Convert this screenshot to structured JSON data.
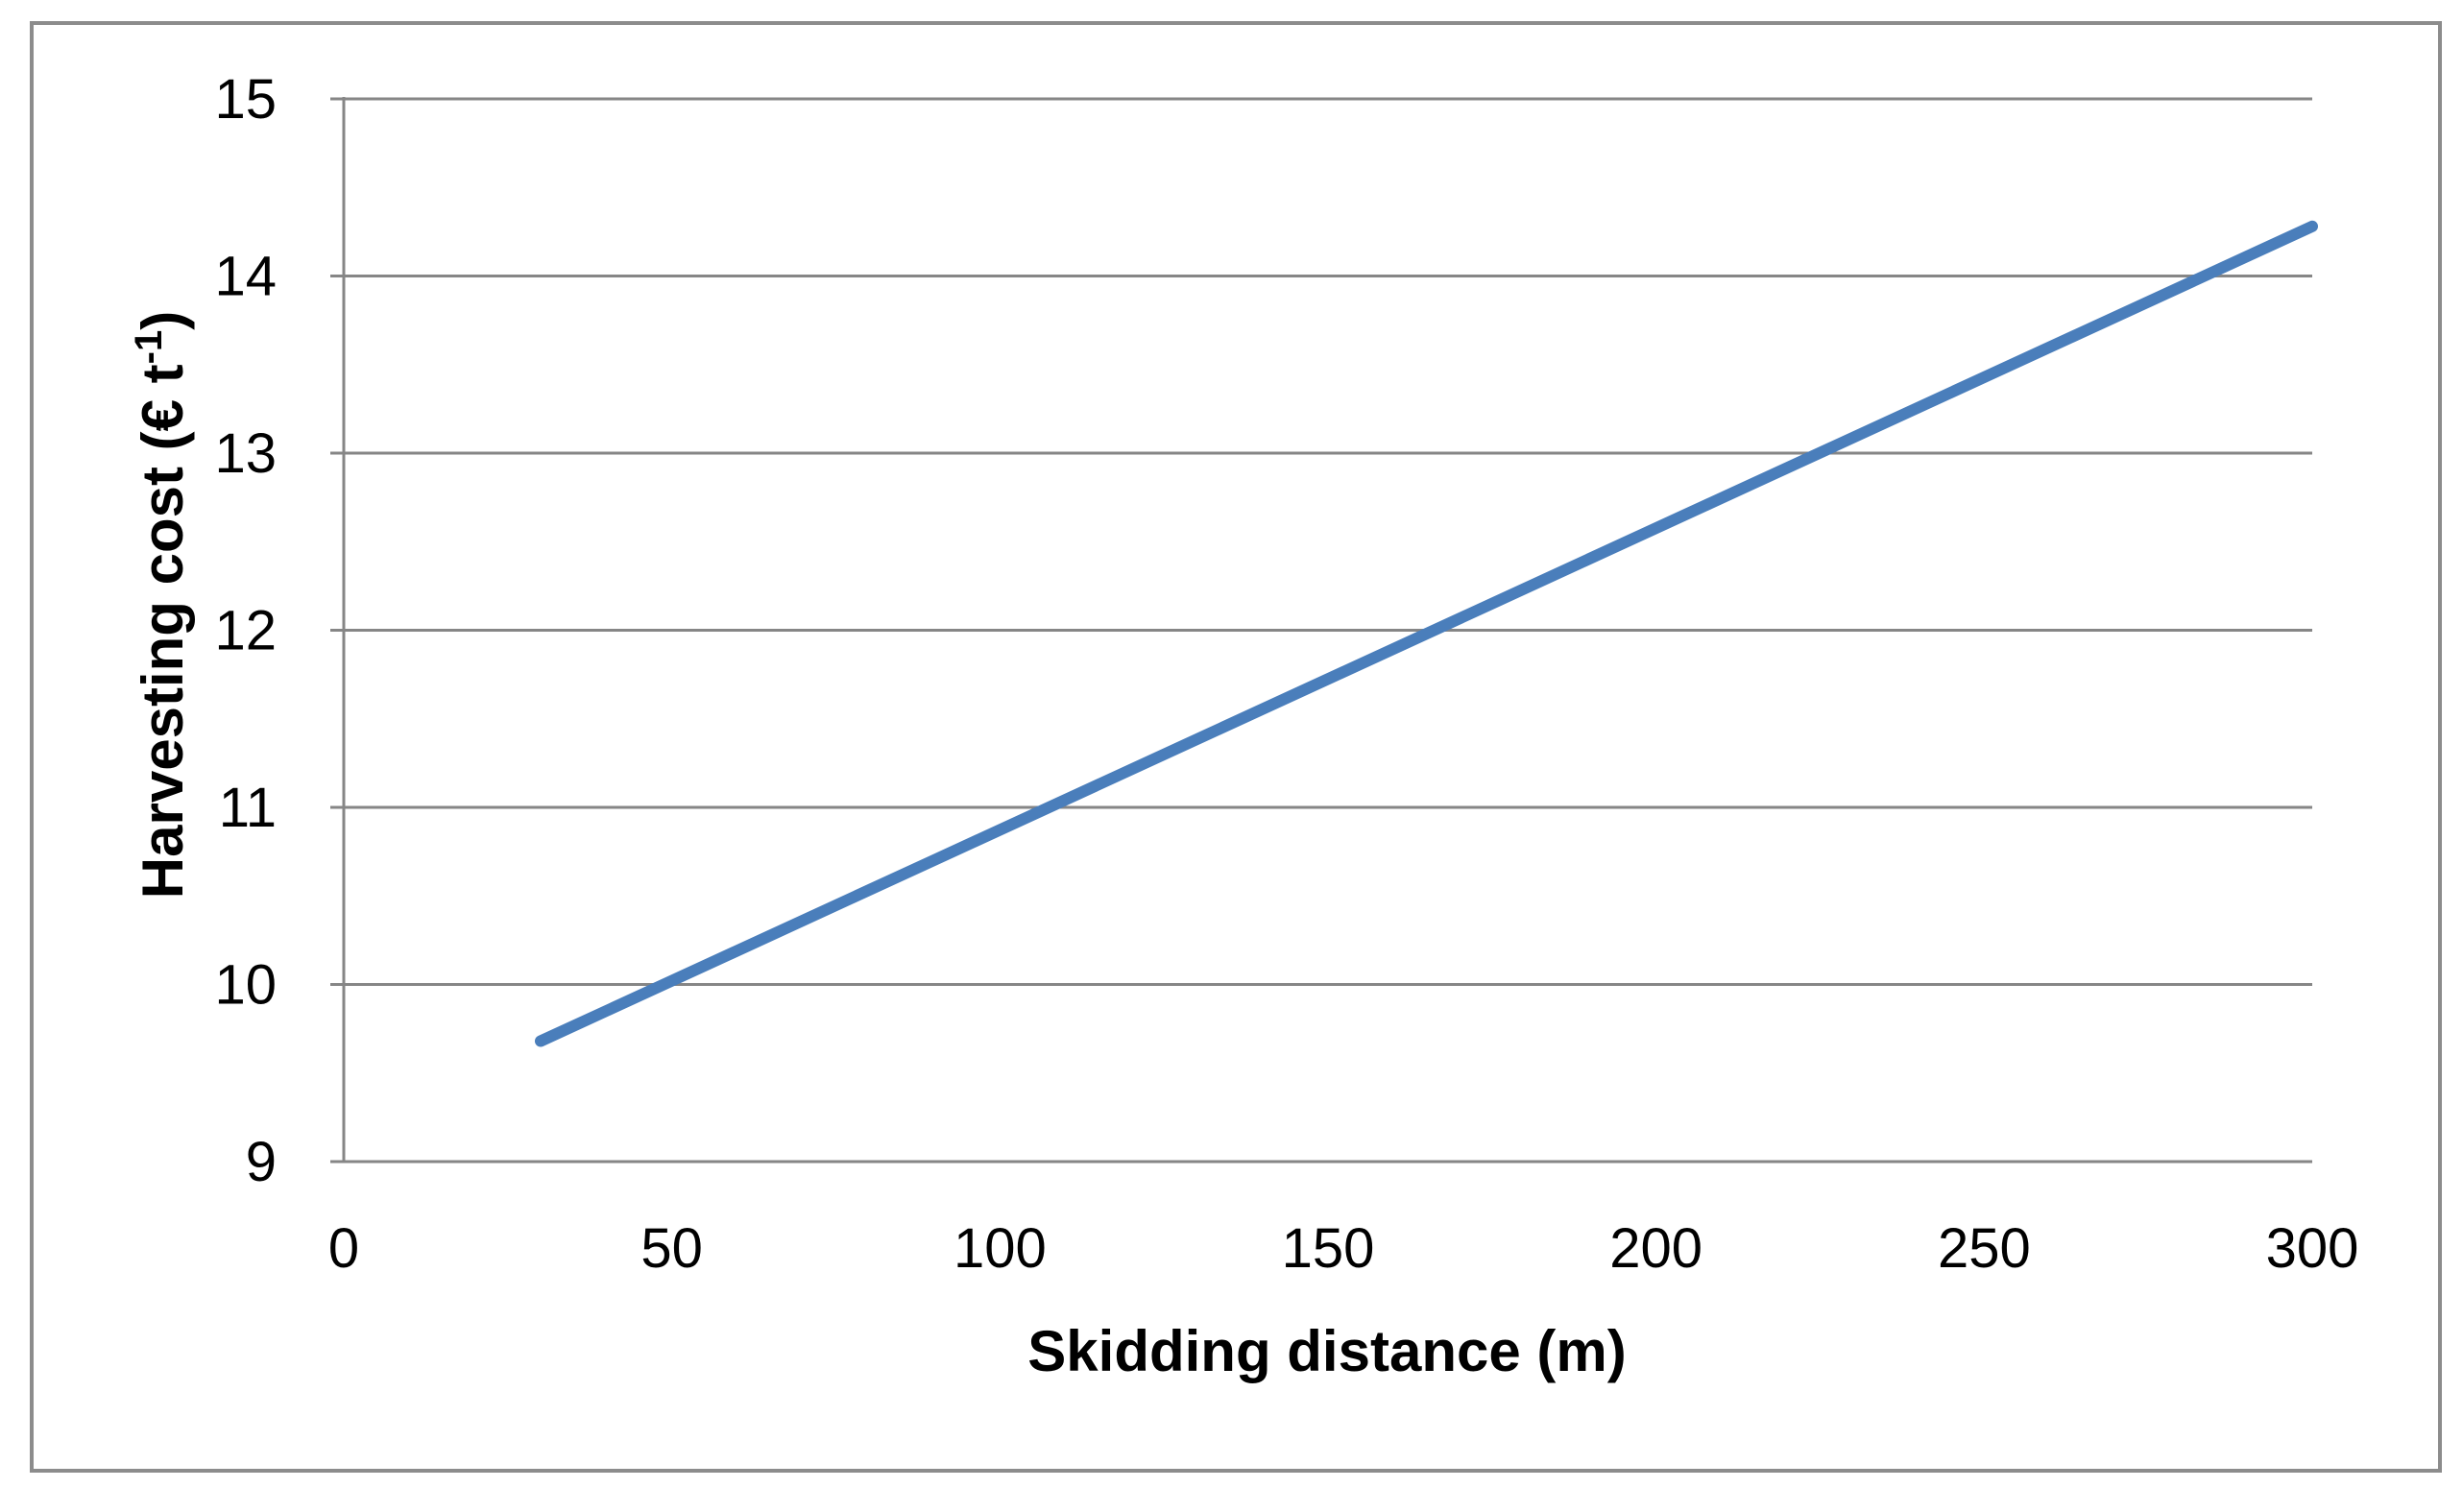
{
  "chart_data": {
    "type": "line",
    "title": "",
    "xlabel": "Skidding distance (m)",
    "ylabel": "Harvesting cost (€ t-1)",
    "ylabel_parts": {
      "main": "Harvesting cost (€ t",
      "superscript": "-1",
      "close": ")"
    },
    "xlim": [
      0,
      300
    ],
    "ylim": [
      9,
      15
    ],
    "x_ticks": [
      0,
      50,
      100,
      150,
      200,
      250,
      300
    ],
    "y_ticks": [
      9,
      10,
      11,
      12,
      13,
      14,
      15
    ],
    "x_tick_labels": [
      "0",
      "50",
      "100",
      "150",
      "200",
      "250",
      "300"
    ],
    "y_tick_labels": [
      "9",
      "10",
      "11",
      "12",
      "13",
      "14",
      "15"
    ],
    "grid": "horizontal",
    "legend": "none",
    "series": [
      {
        "color": "#4a7ebb",
        "x": [
          30,
          300
        ],
        "y": [
          9.68,
          14.28
        ]
      }
    ]
  }
}
